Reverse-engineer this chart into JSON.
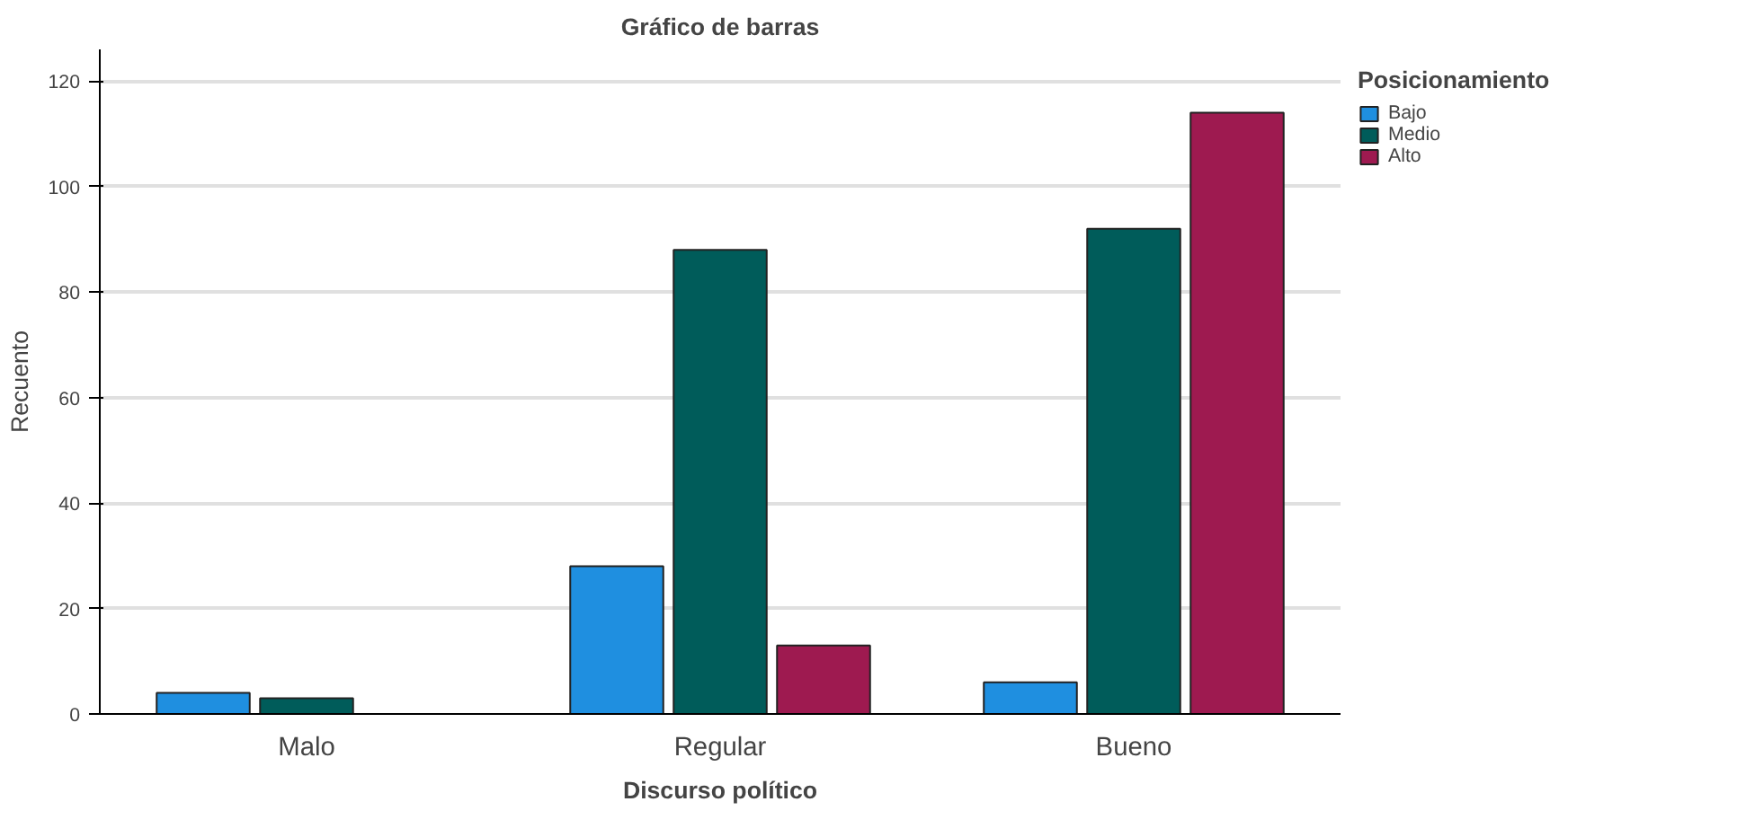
{
  "chart_data": {
    "type": "bar",
    "title": "Gráfico de barras",
    "xlabel": "Discurso político",
    "ylabel": "Recuento",
    "legend_title": "Posicionamiento",
    "categories": [
      "Malo",
      "Regular",
      "Bueno"
    ],
    "series": [
      {
        "name": "Bajo",
        "color": "#1f8fe0",
        "values": [
          4,
          28,
          6
        ]
      },
      {
        "name": "Medio",
        "color": "#005c5a",
        "values": [
          3,
          88,
          92
        ]
      },
      {
        "name": "Alto",
        "color": "#9e1a50",
        "values": [
          null,
          13,
          114
        ]
      }
    ],
    "ylim": [
      0,
      126
    ],
    "yticks": [
      0,
      20,
      40,
      60,
      80,
      100,
      120
    ],
    "grid": "y",
    "legend": "top right"
  }
}
